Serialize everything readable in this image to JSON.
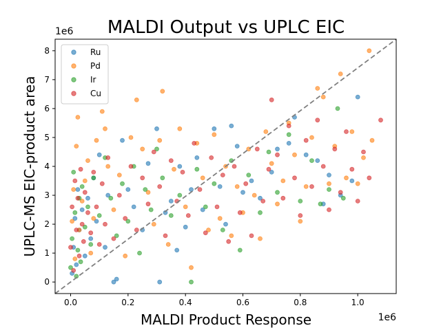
{
  "chart_data": {
    "type": "scatter",
    "title": "MALDI Output vs UPLC EIC",
    "xlabel": "MALDI Product Response",
    "ylabel": "UPLC-MS EIC-product area",
    "x_scale_label": "1e6",
    "y_scale_label": "1e6",
    "xlim": [
      -0.054,
      1.134
    ],
    "ylim": [
      -0.4,
      8.4
    ],
    "x_ticks": [
      0.0,
      0.2,
      0.4,
      0.6,
      0.8,
      1.0
    ],
    "x_tick_labels": [
      "0.0",
      "0.2",
      "0.4",
      "0.6",
      "0.8",
      "1.0"
    ],
    "y_ticks": [
      0,
      1,
      2,
      3,
      4,
      5,
      6,
      7,
      8
    ],
    "y_tick_labels": [
      "0",
      "1",
      "2",
      "3",
      "4",
      "5",
      "6",
      "7",
      "8"
    ],
    "units_note": "x and y values in units of 1e6",
    "grid": false,
    "legend_position": "top-left",
    "reference_line": {
      "style": "dashed",
      "color": "#7f7f7f",
      "from": [
        -0.054,
        -0.4
      ],
      "to": [
        1.134,
        8.4
      ]
    },
    "series": [
      {
        "name": "Ru",
        "color": "#1f77b4",
        "points": [
          [
            0.005,
            0.3
          ],
          [
            0.01,
            1.2
          ],
          [
            0.015,
            2.2
          ],
          [
            0.02,
            0.6
          ],
          [
            0.025,
            3.2
          ],
          [
            0.03,
            1.8
          ],
          [
            0.04,
            2.5
          ],
          [
            0.05,
            0.9
          ],
          [
            0.06,
            2.9
          ],
          [
            0.07,
            1.5
          ],
          [
            0.08,
            3.6
          ],
          [
            0.09,
            2.1
          ],
          [
            0.1,
            4.4
          ],
          [
            0.12,
            1.2
          ],
          [
            0.13,
            3.0
          ],
          [
            0.15,
            0.0
          ],
          [
            0.16,
            0.1
          ],
          [
            0.18,
            4.9
          ],
          [
            0.2,
            3.2
          ],
          [
            0.22,
            2.6
          ],
          [
            0.25,
            1.8
          ],
          [
            0.27,
            4.1
          ],
          [
            0.3,
            5.3
          ],
          [
            0.31,
            0.0
          ],
          [
            0.33,
            2.4
          ],
          [
            0.35,
            2.8
          ],
          [
            0.37,
            1.1
          ],
          [
            0.38,
            4.0
          ],
          [
            0.4,
            1.9
          ],
          [
            0.42,
            3.2
          ],
          [
            0.44,
            4.3
          ],
          [
            0.46,
            2.5
          ],
          [
            0.5,
            5.3
          ],
          [
            0.52,
            3.3
          ],
          [
            0.54,
            2.0
          ],
          [
            0.56,
            5.4
          ],
          [
            0.58,
            4.7
          ],
          [
            0.6,
            3.1
          ],
          [
            0.63,
            3.5
          ],
          [
            0.66,
            2.9
          ],
          [
            0.7,
            3.8
          ],
          [
            0.72,
            4.6
          ],
          [
            0.76,
            4.8
          ],
          [
            0.78,
            5.7
          ],
          [
            0.82,
            4.4
          ],
          [
            0.86,
            4.2
          ],
          [
            0.88,
            2.7
          ],
          [
            0.9,
            3.7
          ],
          [
            0.94,
            3.0
          ],
          [
            0.98,
            3.5
          ],
          [
            1.0,
            6.4
          ]
        ]
      },
      {
        "name": "Pd",
        "color": "#ff7f0e",
        "points": [
          [
            0.005,
            2.1
          ],
          [
            0.01,
            3.2
          ],
          [
            0.015,
            0.8
          ],
          [
            0.02,
            4.7
          ],
          [
            0.025,
            5.7
          ],
          [
            0.03,
            1.8
          ],
          [
            0.04,
            2.8
          ],
          [
            0.05,
            3.5
          ],
          [
            0.06,
            4.2
          ],
          [
            0.07,
            1.0
          ],
          [
            0.08,
            2.2
          ],
          [
            0.09,
            4.9
          ],
          [
            0.11,
            5.9
          ],
          [
            0.12,
            5.3
          ],
          [
            0.13,
            4.0
          ],
          [
            0.15,
            2.5
          ],
          [
            0.17,
            3.7
          ],
          [
            0.19,
            0.9
          ],
          [
            0.21,
            5.0
          ],
          [
            0.23,
            6.3
          ],
          [
            0.25,
            4.6
          ],
          [
            0.27,
            3.1
          ],
          [
            0.29,
            2.0
          ],
          [
            0.31,
            4.9
          ],
          [
            0.32,
            6.6
          ],
          [
            0.34,
            1.3
          ],
          [
            0.36,
            3.9
          ],
          [
            0.38,
            5.3
          ],
          [
            0.4,
            2.6
          ],
          [
            0.42,
            0.5
          ],
          [
            0.44,
            4.8
          ],
          [
            0.46,
            3.6
          ],
          [
            0.48,
            1.8
          ],
          [
            0.5,
            5.1
          ],
          [
            0.52,
            2.2
          ],
          [
            0.54,
            4.0
          ],
          [
            0.56,
            1.6
          ],
          [
            0.58,
            3.3
          ],
          [
            0.6,
            2.4
          ],
          [
            0.62,
            4.6
          ],
          [
            0.64,
            3.0
          ],
          [
            0.66,
            1.5
          ],
          [
            0.68,
            5.2
          ],
          [
            0.7,
            4.1
          ],
          [
            0.72,
            2.7
          ],
          [
            0.74,
            3.5
          ],
          [
            0.76,
            5.5
          ],
          [
            0.78,
            4.4
          ],
          [
            0.8,
            2.1
          ],
          [
            0.82,
            3.3
          ],
          [
            0.84,
            5.0
          ],
          [
            0.86,
            6.7
          ],
          [
            0.88,
            6.4
          ],
          [
            0.9,
            3.4
          ],
          [
            0.92,
            4.7
          ],
          [
            0.94,
            7.2
          ],
          [
            0.96,
            3.6
          ],
          [
            0.98,
            5.2
          ],
          [
            1.0,
            3.4
          ],
          [
            1.02,
            4.3
          ],
          [
            1.04,
            8.0
          ],
          [
            1.05,
            4.9
          ]
        ]
      },
      {
        "name": "Ir",
        "color": "#2ca02c",
        "points": [
          [
            0.0,
            0.5
          ],
          [
            0.005,
            1.5
          ],
          [
            0.01,
            3.8
          ],
          [
            0.015,
            2.4
          ],
          [
            0.02,
            0.2
          ],
          [
            0.025,
            1.1
          ],
          [
            0.03,
            2.9
          ],
          [
            0.035,
            0.7
          ],
          [
            0.04,
            3.3
          ],
          [
            0.05,
            1.9
          ],
          [
            0.06,
            2.6
          ],
          [
            0.07,
            1.3
          ],
          [
            0.08,
            3.6
          ],
          [
            0.1,
            2.3
          ],
          [
            0.12,
            4.3
          ],
          [
            0.14,
            2.9
          ],
          [
            0.16,
            1.6
          ],
          [
            0.18,
            3.4
          ],
          [
            0.2,
            2.1
          ],
          [
            0.22,
            4.0
          ],
          [
            0.24,
            1.0
          ],
          [
            0.26,
            3.2
          ],
          [
            0.28,
            2.5
          ],
          [
            0.3,
            4.6
          ],
          [
            0.32,
            3.6
          ],
          [
            0.35,
            2.3
          ],
          [
            0.38,
            3.0
          ],
          [
            0.42,
            0.0
          ],
          [
            0.44,
            3.9
          ],
          [
            0.47,
            2.6
          ],
          [
            0.5,
            3.4
          ],
          [
            0.53,
            1.8
          ],
          [
            0.56,
            4.2
          ],
          [
            0.59,
            1.1
          ],
          [
            0.62,
            3.7
          ],
          [
            0.66,
            2.4
          ],
          [
            0.69,
            4.5
          ],
          [
            0.72,
            3.1
          ],
          [
            0.76,
            5.1
          ],
          [
            0.8,
            2.8
          ],
          [
            0.84,
            4.2
          ],
          [
            0.87,
            2.7
          ],
          [
            0.9,
            3.2
          ],
          [
            0.93,
            6.0
          ],
          [
            0.95,
            2.9
          ]
        ]
      },
      {
        "name": "Cu",
        "color": "#d62728",
        "points": [
          [
            0.0,
            1.2
          ],
          [
            0.005,
            2.6
          ],
          [
            0.01,
            0.4
          ],
          [
            0.015,
            3.5
          ],
          [
            0.02,
            1.8
          ],
          [
            0.025,
            2.9
          ],
          [
            0.03,
            0.9
          ],
          [
            0.035,
            3.9
          ],
          [
            0.04,
            2.0
          ],
          [
            0.045,
            1.4
          ],
          [
            0.05,
            3.1
          ],
          [
            0.06,
            2.4
          ],
          [
            0.07,
            1.7
          ],
          [
            0.08,
            3.8
          ],
          [
            0.09,
            2.6
          ],
          [
            0.1,
            1.3
          ],
          [
            0.11,
            3.4
          ],
          [
            0.12,
            2.0
          ],
          [
            0.13,
            4.3
          ],
          [
            0.15,
            1.5
          ],
          [
            0.17,
            3.0
          ],
          [
            0.19,
            2.2
          ],
          [
            0.21,
            4.0
          ],
          [
            0.23,
            1.8
          ],
          [
            0.25,
            3.6
          ],
          [
            0.27,
            2.7
          ],
          [
            0.29,
            4.5
          ],
          [
            0.31,
            3.3
          ],
          [
            0.33,
            1.6
          ],
          [
            0.35,
            4.2
          ],
          [
            0.37,
            2.8
          ],
          [
            0.39,
            3.8
          ],
          [
            0.41,
            2.3
          ],
          [
            0.43,
            4.8
          ],
          [
            0.45,
            3.2
          ],
          [
            0.47,
            1.7
          ],
          [
            0.49,
            4.3
          ],
          [
            0.51,
            2.6
          ],
          [
            0.53,
            3.7
          ],
          [
            0.55,
            1.4
          ],
          [
            0.57,
            4.0
          ],
          [
            0.59,
            2.4
          ],
          [
            0.61,
            3.4
          ],
          [
            0.63,
            1.6
          ],
          [
            0.65,
            4.6
          ],
          [
            0.67,
            2.8
          ],
          [
            0.69,
            3.9
          ],
          [
            0.7,
            6.3
          ],
          [
            0.72,
            4.4
          ],
          [
            0.74,
            2.9
          ],
          [
            0.76,
            5.4
          ],
          [
            0.78,
            3.6
          ],
          [
            0.8,
            2.3
          ],
          [
            0.82,
            4.9
          ],
          [
            0.84,
            3.3
          ],
          [
            0.86,
            5.6
          ],
          [
            0.88,
            4.0
          ],
          [
            0.9,
            2.5
          ],
          [
            0.92,
            4.6
          ],
          [
            0.94,
            3.1
          ],
          [
            0.96,
            5.2
          ],
          [
            0.98,
            3.9
          ],
          [
            1.0,
            2.8
          ],
          [
            1.02,
            4.5
          ],
          [
            1.04,
            3.6
          ],
          [
            1.08,
            5.6
          ]
        ]
      }
    ]
  }
}
